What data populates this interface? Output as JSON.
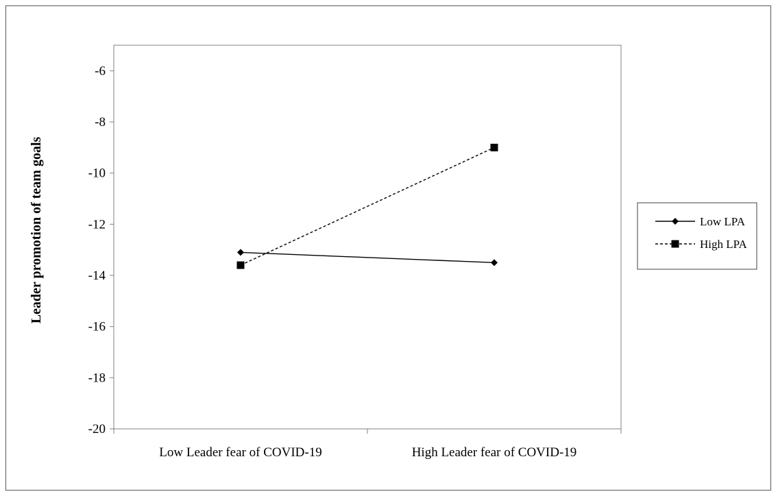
{
  "chart_data": {
    "type": "line",
    "title": "",
    "xlabel": "",
    "ylabel": "Leader promotion of team goals",
    "categories": [
      "Low Leader fear of COVID-19",
      "High Leader fear of COVID-19"
    ],
    "ylim": [
      -20,
      -5
    ],
    "yticks": [
      -6,
      -8,
      -10,
      -12,
      -14,
      -16,
      -18,
      -20
    ],
    "grid": false,
    "legend_position": "right",
    "series": [
      {
        "name": "Low LPA",
        "values": [
          -13.1,
          -13.5
        ],
        "line_style": "solid",
        "marker": "diamond",
        "color": "#000000"
      },
      {
        "name": "High LPA",
        "values": [
          -13.6,
          -9.0
        ],
        "line_style": "dashed",
        "marker": "square",
        "color": "#000000"
      }
    ]
  }
}
